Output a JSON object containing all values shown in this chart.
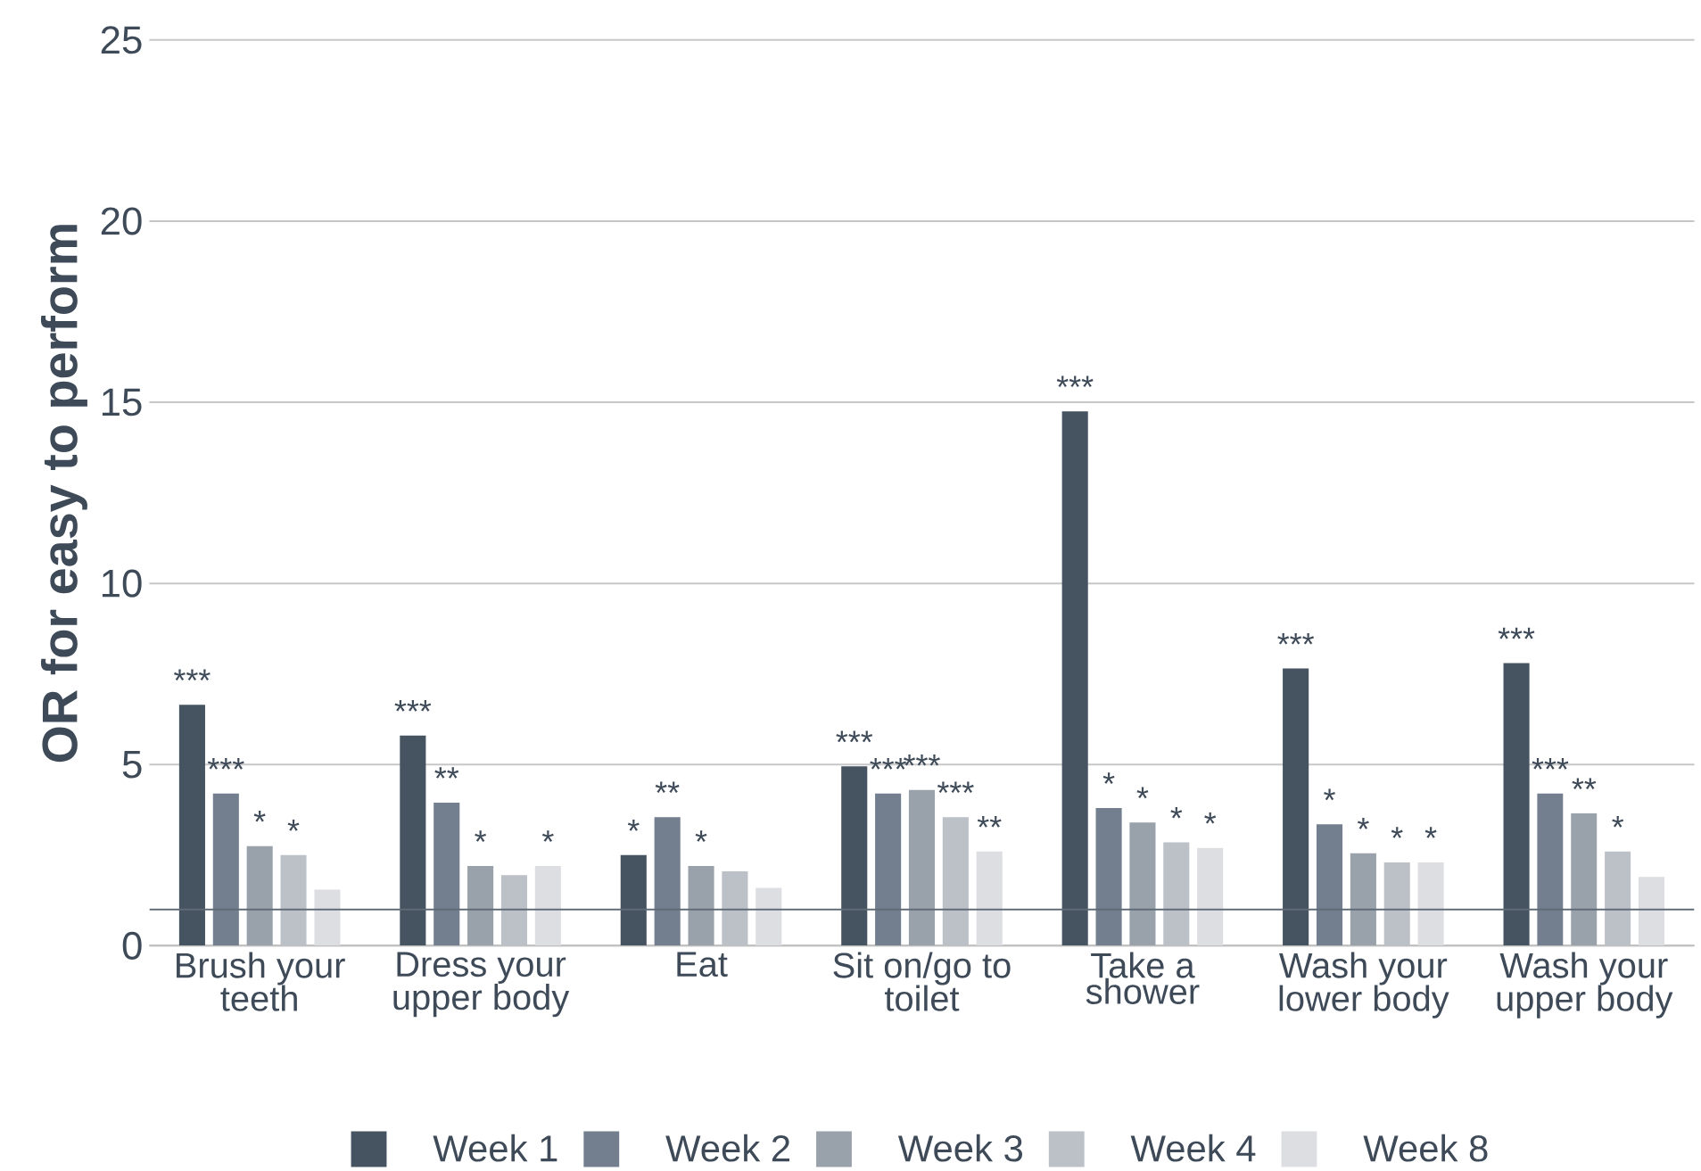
{
  "chart_data": {
    "type": "bar",
    "ylabel": "OR for easy to perform",
    "categories": [
      "Brush your teeth",
      "Dress your upper body",
      "Eat",
      "Sit on/go to toilet",
      "Take a shower",
      "Wash your lower body",
      "Wash your upper body"
    ],
    "series": [
      {
        "name": "Week 1",
        "color": "#465461",
        "values": [
          6.65,
          5.8,
          2.5,
          4.95,
          14.75,
          7.65,
          7.8
        ],
        "value_labels": [
          "***",
          "***",
          "*",
          "***",
          "***",
          "***",
          "***"
        ]
      },
      {
        "name": "Week 2",
        "color": "#737f8e",
        "values": [
          4.2,
          3.95,
          3.55,
          4.2,
          3.8,
          3.35,
          4.2
        ],
        "value_labels": [
          "***",
          "**",
          "**",
          "***",
          "*",
          "*",
          "***"
        ]
      },
      {
        "name": "Week 3",
        "color": "#99a1aa",
        "values": [
          2.75,
          2.2,
          2.2,
          4.3,
          3.4,
          2.55,
          3.65
        ],
        "value_labels": [
          "*",
          "*",
          "*",
          "***",
          "*",
          "*",
          "**"
        ]
      },
      {
        "name": "Week 4",
        "color": "#bcc0c7",
        "values": [
          2.5,
          1.95,
          2.05,
          3.55,
          2.85,
          2.3,
          2.6
        ],
        "value_labels": [
          "*",
          null,
          null,
          "***",
          "*",
          "*",
          "*"
        ]
      },
      {
        "name": "Week 8",
        "color": "#dddee2",
        "values": [
          1.55,
          2.2,
          1.6,
          2.6,
          2.7,
          2.3,
          1.9
        ],
        "value_labels": [
          null,
          "*",
          null,
          "**",
          "*",
          "*",
          null
        ]
      }
    ],
    "ylim": [
      0,
      25
    ],
    "yticks": [
      0,
      5,
      10,
      15,
      20,
      25
    ],
    "grid": "y",
    "legend": "bottom",
    "ref_lines": [
      {
        "axis": "y",
        "value": 1,
        "color": "#5f6b77"
      }
    ]
  }
}
